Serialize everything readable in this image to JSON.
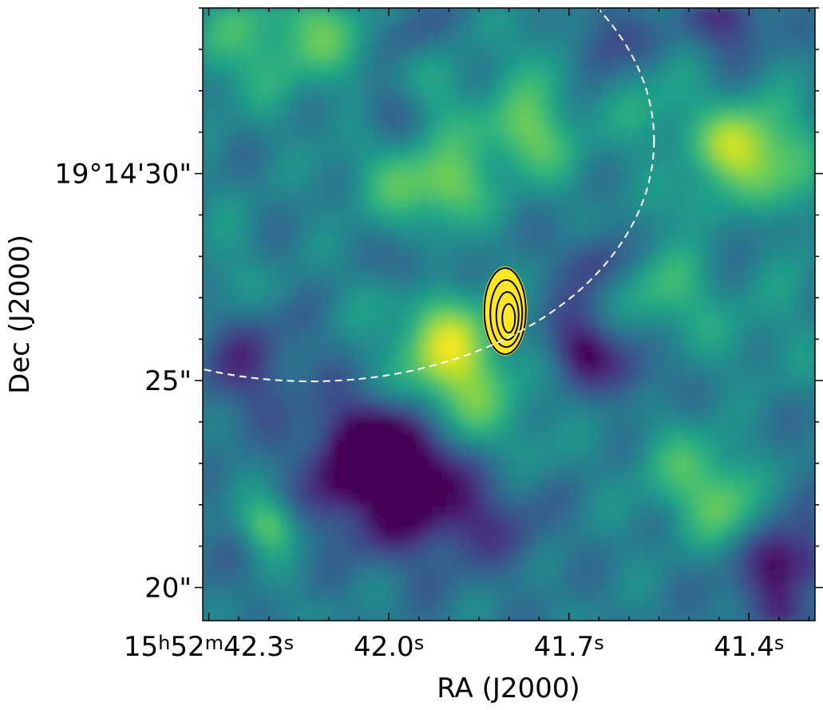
{
  "chart_data": {
    "type": "heatmap",
    "title": "",
    "xlabel": "RA (J2000)",
    "ylabel": "Dec (J2000)",
    "colormap": "viridis",
    "colors": {
      "low": "#440154",
      "mid": "#21918c",
      "high": "#fde725",
      "contour": "#000000",
      "ellipse": "#ffffff"
    },
    "x_ticks": [
      {
        "seconds": 42.3,
        "label_parts": [
          {
            "t": "15"
          },
          {
            "t": "h",
            "sup": true
          },
          {
            "t": "52"
          },
          {
            "t": "m",
            "sup": true
          },
          {
            "t": "42.3"
          },
          {
            "t": "s",
            "sup": true
          }
        ]
      },
      {
        "seconds": 42.0,
        "label_parts": [
          {
            "t": "42.0"
          },
          {
            "t": "s",
            "sup": true
          }
        ]
      },
      {
        "seconds": 41.7,
        "label_parts": [
          {
            "t": "41.7"
          },
          {
            "t": "s",
            "sup": true
          }
        ]
      },
      {
        "seconds": 41.4,
        "label_parts": [
          {
            "t": "41.4"
          },
          {
            "t": "s",
            "sup": true
          }
        ]
      }
    ],
    "y_ticks": [
      {
        "arcsec": 30,
        "label": "19°14'30\""
      },
      {
        "arcsec": 25,
        "label": "25\""
      },
      {
        "arcsec": 20,
        "label": "20\""
      }
    ],
    "xlim_seconds": [
      42.31,
      41.29
    ],
    "ylim_arcsec": [
      19.2,
      34.0
    ],
    "source": {
      "ra_s": 41.805,
      "dec_arcsec": 26.6,
      "contour_levels": 4
    },
    "beam_ellipse": {
      "center_ra_s": 42.13,
      "center_dec_arcsec": 30.8,
      "style": "dashed"
    }
  }
}
